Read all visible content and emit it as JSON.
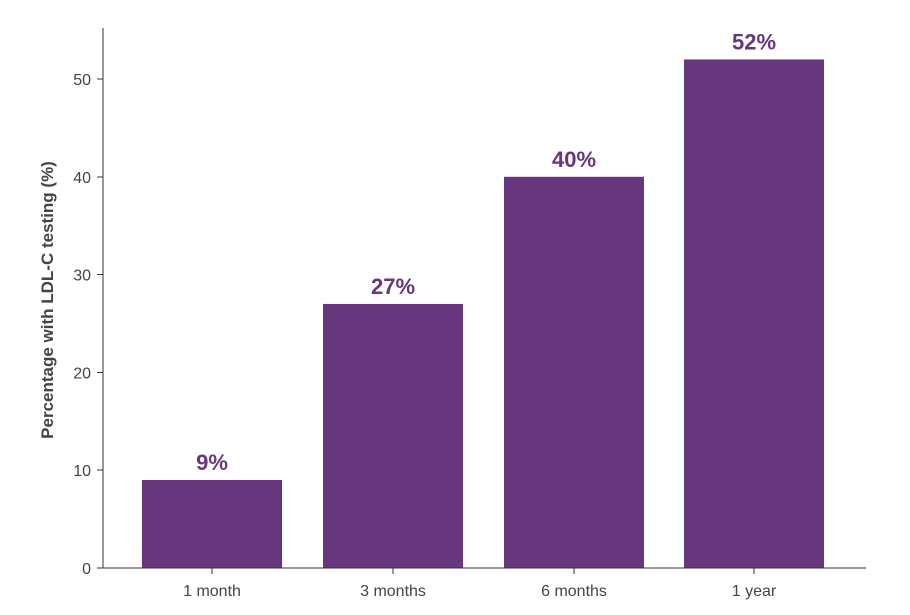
{
  "chart_data": {
    "type": "bar",
    "categories": [
      "1 month",
      "3 months",
      "6 months",
      "1 year"
    ],
    "values": [
      9,
      27,
      40,
      52
    ],
    "data_labels": [
      "9%",
      "27%",
      "40%",
      "52%"
    ],
    "title": "",
    "xlabel": "",
    "ylabel": "Percentage with LDL-C testing (%)",
    "ylim": [
      0,
      55
    ],
    "yticks": [
      0,
      10,
      20,
      30,
      40,
      50
    ],
    "grid": false,
    "legend": "none",
    "colors": {
      "bar": "#66367E",
      "data_label": "#66367E",
      "axis": "#333333",
      "text": "#444444"
    }
  }
}
